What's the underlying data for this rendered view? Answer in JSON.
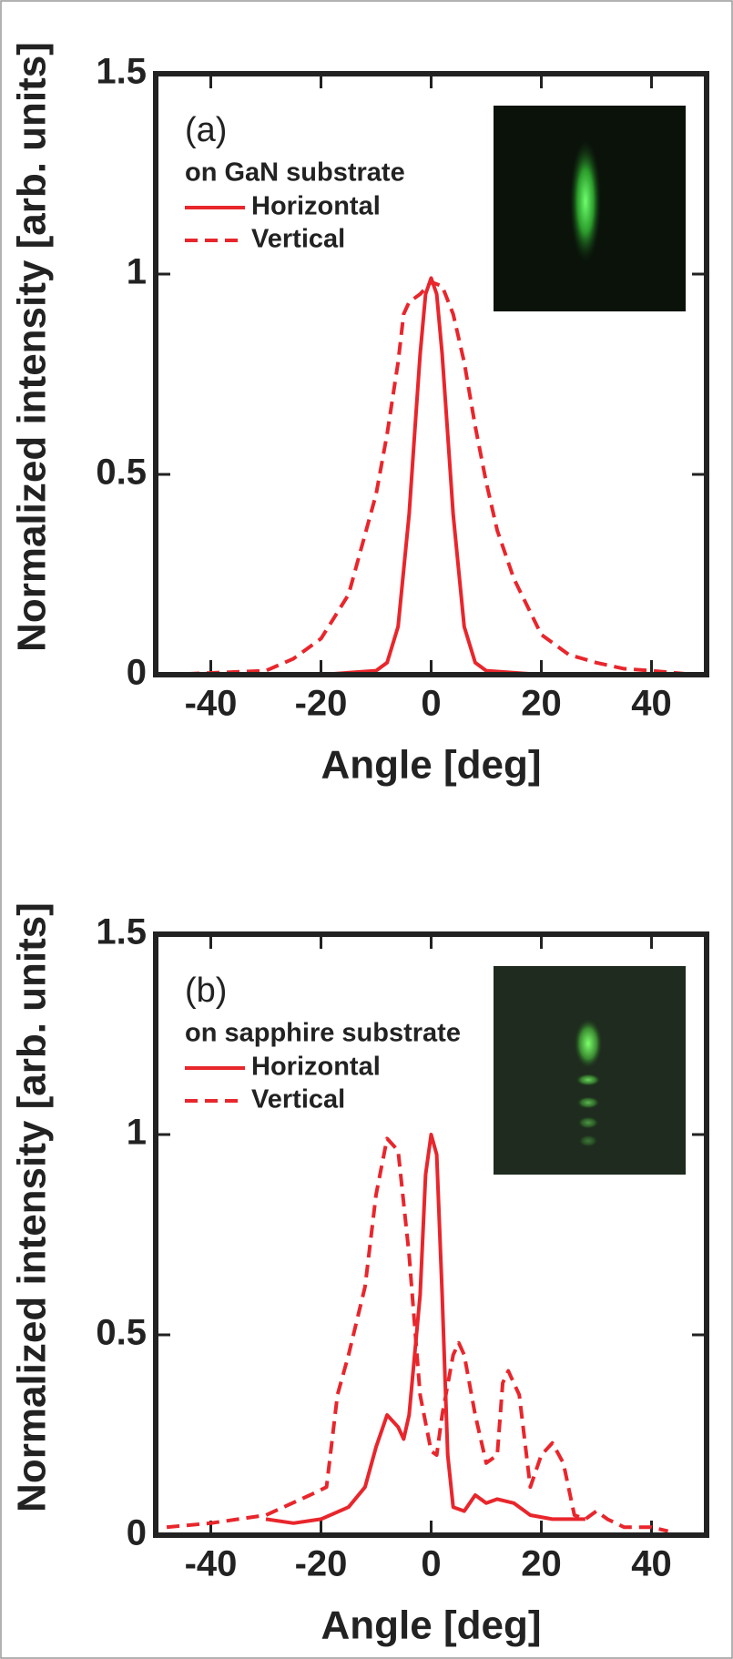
{
  "chart_data": [
    {
      "type": "line",
      "panel_label": "(a)",
      "legend_title": "on GaN substrate",
      "x_label": "Angle [deg]",
      "y_label": "Normalized intensity [arb. units]",
      "xlim": [
        -50,
        50
      ],
      "ylim": [
        0,
        1.5
      ],
      "xticks": [
        -40,
        -20,
        0,
        20,
        40
      ],
      "yticks": [
        0,
        0.5,
        1,
        1.5
      ],
      "series": [
        {
          "name": "Horizontal",
          "color": "#e8262c",
          "linestyle": "solid",
          "x": [
            -48,
            -20,
            -10,
            -8,
            -6,
            -4,
            -3,
            -2,
            -1,
            0,
            1,
            2,
            3,
            4,
            6,
            8,
            10,
            20,
            48
          ],
          "values": [
            0,
            0,
            0.01,
            0.03,
            0.12,
            0.4,
            0.6,
            0.8,
            0.95,
            0.99,
            0.95,
            0.8,
            0.6,
            0.4,
            0.12,
            0.03,
            0.01,
            0,
            0
          ]
        },
        {
          "name": "Vertical",
          "color": "#e8262c",
          "linestyle": "dashed",
          "x": [
            -48,
            -30,
            -25,
            -20,
            -15,
            -10,
            -8,
            -6,
            -5,
            -4,
            -2,
            0,
            2,
            4,
            6,
            8,
            10,
            12,
            15,
            20,
            25,
            30,
            35,
            40,
            48
          ],
          "values": [
            0,
            0.01,
            0.04,
            0.09,
            0.2,
            0.45,
            0.6,
            0.78,
            0.9,
            0.93,
            0.95,
            0.98,
            0.97,
            0.9,
            0.78,
            0.62,
            0.48,
            0.36,
            0.24,
            0.1,
            0.05,
            0.03,
            0.015,
            0.01,
            0
          ]
        }
      ]
    },
    {
      "type": "line",
      "panel_label": "(b)",
      "legend_title": "on sapphire substrate",
      "x_label": "Angle [deg]",
      "y_label": "Normalized intensity [arb. units]",
      "xlim": [
        -50,
        50
      ],
      "ylim": [
        0,
        1.5
      ],
      "xticks": [
        -40,
        -20,
        0,
        20,
        40
      ],
      "yticks": [
        0,
        0.5,
        1,
        1.5
      ],
      "series": [
        {
          "name": "Horizontal",
          "color": "#e8262c",
          "linestyle": "solid",
          "x": [
            -30,
            -25,
            -20,
            -15,
            -12,
            -10,
            -8,
            -6,
            -5,
            -4,
            -2,
            -1,
            0,
            1,
            2,
            3,
            4,
            6,
            8,
            10,
            12,
            15,
            18,
            22,
            25,
            28
          ],
          "values": [
            0.04,
            0.03,
            0.04,
            0.07,
            0.12,
            0.22,
            0.3,
            0.27,
            0.24,
            0.3,
            0.6,
            0.9,
            1.0,
            0.95,
            0.6,
            0.2,
            0.07,
            0.06,
            0.1,
            0.08,
            0.09,
            0.08,
            0.05,
            0.04,
            0.04,
            0.04
          ]
        },
        {
          "name": "Vertical",
          "color": "#e8262c",
          "linestyle": "dashed",
          "x": [
            -48,
            -40,
            -30,
            -22,
            -19,
            -17,
            -15,
            -12,
            -10,
            -8,
            -6,
            -4,
            -2,
            0,
            1,
            2,
            4,
            5,
            6,
            8,
            10,
            12,
            13,
            14,
            16,
            18,
            20,
            22,
            24,
            26,
            28,
            30,
            32,
            35,
            40,
            43
          ],
          "values": [
            0.02,
            0.03,
            0.05,
            0.1,
            0.12,
            0.35,
            0.45,
            0.62,
            0.85,
            0.99,
            0.96,
            0.7,
            0.35,
            0.21,
            0.2,
            0.3,
            0.45,
            0.48,
            0.45,
            0.3,
            0.18,
            0.2,
            0.38,
            0.41,
            0.35,
            0.12,
            0.2,
            0.23,
            0.18,
            0.05,
            0.04,
            0.06,
            0.04,
            0.02,
            0.02,
            0.01
          ]
        }
      ]
    }
  ]
}
